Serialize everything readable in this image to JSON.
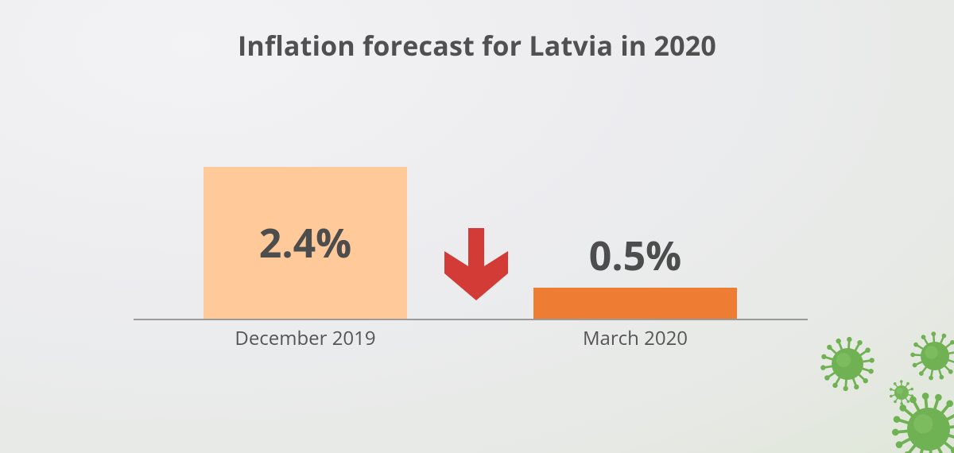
{
  "colors": {
    "bar_light": "#ffc999",
    "bar_dark": "#ee7c32",
    "arrow": "#d23b36",
    "axis": "#9a9a9a",
    "virus": "#6ab04c"
  },
  "icons": {
    "trend_arrow": "down-arrow-icon",
    "decoration": "virus-icon"
  },
  "chart_data": {
    "type": "bar",
    "title": "Inflation forecast for Latvia in 2020",
    "xlabel": "",
    "ylabel": "",
    "categories": [
      "December 2019",
      "March 2020"
    ],
    "values": [
      2.4,
      0.5
    ],
    "data_labels": [
      "2.4%",
      "0.5%"
    ],
    "ylim": [
      0,
      2.4
    ],
    "grid": false,
    "legend": "none"
  }
}
